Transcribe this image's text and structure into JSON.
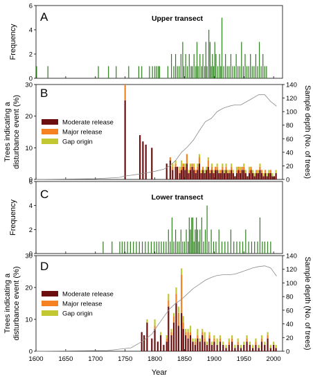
{
  "figure": {
    "xlabel": "Year",
    "xticks": [
      1600,
      1650,
      1700,
      1750,
      1800,
      1850,
      1900,
      1950,
      2000
    ],
    "xlim": [
      1600,
      2015
    ]
  },
  "chart_data": [
    {
      "panel": "A",
      "type": "bar",
      "title": "Upper transect",
      "ylabel": "Frequency",
      "ylim": [
        0,
        6
      ],
      "yticks": [
        0,
        2,
        4,
        6
      ],
      "color": "#2e7d1e",
      "x": [
        1601,
        1620,
        1705,
        1722,
        1735,
        1756,
        1773,
        1778,
        1791,
        1796,
        1800,
        1803,
        1806,
        1808,
        1822,
        1828,
        1832,
        1835,
        1838,
        1841,
        1844,
        1847,
        1849,
        1852,
        1855,
        1858,
        1861,
        1863,
        1866,
        1869,
        1871,
        1873,
        1876,
        1879,
        1881,
        1884,
        1886,
        1888,
        1891,
        1893,
        1895,
        1897,
        1899,
        1901,
        1903,
        1906,
        1909,
        1911,
        1913,
        1916,
        1919,
        1922,
        1925,
        1928,
        1931,
        1934,
        1937,
        1940,
        1943,
        1946,
        1949,
        1952,
        1955,
        1958,
        1961,
        1964,
        1967,
        1970,
        1973,
        1976,
        1979,
        1982,
        1985,
        1988
      ],
      "values": [
        1,
        1,
        1,
        1,
        1,
        1,
        1,
        1,
        1,
        1,
        1,
        1,
        1,
        1,
        1,
        2,
        1,
        2,
        1,
        1,
        2,
        3,
        1,
        2,
        1,
        2,
        1,
        1,
        2,
        1,
        3,
        1,
        2,
        1,
        2,
        1,
        3,
        1,
        4,
        3,
        1,
        2,
        1,
        3,
        2,
        1,
        2,
        1,
        5,
        1,
        2,
        1,
        1,
        2,
        1,
        1,
        2,
        1,
        1,
        3,
        1,
        2,
        1,
        1,
        2,
        1,
        1,
        2,
        1,
        3,
        1,
        2,
        1,
        1
      ]
    },
    {
      "panel": "B",
      "type": "bar",
      "ylabel": "Trees indicating a disturbance event (%)",
      "y2label": "Sample depth (No. of trees)",
      "ylim": [
        0,
        30
      ],
      "yticks": [
        0,
        10,
        20,
        30
      ],
      "y2lim": [
        0,
        140
      ],
      "y2ticks": [
        0,
        20,
        40,
        60,
        80,
        100,
        120,
        140
      ],
      "legend": {
        "placement": "left",
        "entries": [
          "Moderate release",
          "Major release",
          "Gap origin"
        ]
      },
      "colors": {
        "Moderate release": "#6b0f0f",
        "Major release": "#f58220",
        "Gap origin": "#c2c832"
      },
      "x": [
        1750,
        1775,
        1780,
        1785,
        1795,
        1820,
        1826,
        1830,
        1835,
        1838,
        1842,
        1845,
        1848,
        1851,
        1854,
        1857,
        1860,
        1863,
        1866,
        1869,
        1872,
        1875,
        1878,
        1881,
        1884,
        1887,
        1890,
        1893,
        1896,
        1899,
        1902,
        1905,
        1908,
        1911,
        1914,
        1917,
        1920,
        1923,
        1926,
        1929,
        1932,
        1935,
        1938,
        1941,
        1944,
        1947,
        1950,
        1953,
        1956,
        1959,
        1962,
        1965,
        1968,
        1971,
        1974,
        1977,
        1980,
        1983,
        1986,
        1989,
        1992,
        1995,
        1998,
        2001,
        2004
      ],
      "series": [
        {
          "name": "Moderate release",
          "values": [
            25,
            14,
            12,
            11,
            10,
            5,
            6,
            3,
            4,
            4,
            2,
            3,
            4,
            3,
            5,
            2,
            3,
            4,
            3,
            2,
            3,
            5,
            2,
            3,
            2,
            3,
            4,
            2,
            3,
            2,
            3,
            3,
            2,
            2,
            3,
            2,
            3,
            2,
            2,
            3,
            2,
            1,
            2,
            3,
            2,
            3,
            3,
            2,
            1,
            2,
            3,
            2,
            1,
            2,
            2,
            3,
            2,
            1,
            2,
            1,
            2,
            2,
            1,
            1,
            2
          ]
        },
        {
          "name": "Major release",
          "values": [
            5,
            0,
            0,
            0,
            0,
            0,
            1,
            1,
            1,
            0,
            1,
            1,
            1,
            1,
            3,
            0,
            1,
            1,
            1,
            1,
            1,
            2,
            0,
            1,
            0,
            0,
            2,
            1,
            1,
            0,
            1,
            1,
            0,
            1,
            1,
            0,
            1,
            0,
            1,
            1,
            0,
            0,
            1,
            1,
            1,
            1,
            1,
            0,
            0,
            1,
            1,
            0,
            0,
            1,
            0,
            1,
            1,
            0,
            1,
            0,
            0,
            1,
            0,
            0,
            0
          ]
        },
        {
          "name": "Gap origin",
          "values": [
            0,
            0,
            0,
            0,
            0,
            0,
            0,
            1,
            1,
            0,
            1,
            2,
            0,
            1,
            0,
            1,
            1,
            0,
            1,
            0,
            1,
            1,
            1,
            0,
            1,
            1,
            1,
            0,
            1,
            1,
            0,
            1,
            1,
            0,
            1,
            1,
            1,
            1,
            0,
            1,
            1,
            0,
            1,
            0,
            1,
            0,
            1,
            1,
            0,
            1,
            0,
            1,
            1,
            0,
            1,
            1,
            0,
            1,
            0,
            1,
            1,
            0,
            1,
            0,
            1
          ]
        }
      ],
      "sample_depth": {
        "x": [
          1600,
          1700,
          1740,
          1750,
          1775,
          1800,
          1815,
          1825,
          1835,
          1845,
          1855,
          1865,
          1875,
          1885,
          1895,
          1905,
          1915,
          1925,
          1935,
          1945,
          1955,
          1965,
          1975,
          1985,
          1995,
          2005
        ],
        "y": [
          0,
          1,
          3,
          5,
          8,
          12,
          15,
          20,
          28,
          40,
          48,
          58,
          72,
          85,
          90,
          100,
          105,
          108,
          110,
          110,
          115,
          120,
          125,
          125,
          115,
          108
        ]
      }
    },
    {
      "panel": "C",
      "type": "bar",
      "title": "Lower transect",
      "ylabel": "Frequency",
      "ylim": [
        0,
        6
      ],
      "yticks": [
        0,
        2,
        4,
        6
      ],
      "color": "#2e7d1e",
      "x": [
        1713,
        1728,
        1741,
        1745,
        1749,
        1754,
        1759,
        1764,
        1769,
        1774,
        1779,
        1784,
        1789,
        1794,
        1799,
        1803,
        1807,
        1811,
        1815,
        1819,
        1823,
        1826,
        1829,
        1832,
        1835,
        1838,
        1841,
        1844,
        1847,
        1850,
        1853,
        1856,
        1858,
        1860,
        1862,
        1864,
        1866,
        1868,
        1870,
        1872,
        1874,
        1876,
        1879,
        1882,
        1885,
        1888,
        1891,
        1895,
        1899,
        1903,
        1908,
        1913,
        1918,
        1923,
        1928,
        1933,
        1938,
        1943,
        1948,
        1953,
        1958,
        1963,
        1968,
        1973,
        1977,
        1981,
        1985,
        1990,
        1995
      ],
      "values": [
        1,
        1,
        1,
        1,
        1,
        1,
        1,
        1,
        1,
        1,
        1,
        1,
        1,
        1,
        1,
        1,
        1,
        1,
        1,
        1,
        2,
        1,
        3,
        1,
        2,
        1,
        1,
        2,
        1,
        1,
        2,
        1,
        3,
        2,
        3,
        3,
        1,
        2,
        3,
        2,
        1,
        2,
        3,
        1,
        2,
        4,
        1,
        2,
        1,
        1,
        2,
        1,
        1,
        1,
        2,
        1,
        1,
        1,
        1,
        2,
        1,
        1,
        1,
        1,
        3,
        1,
        1,
        1,
        1
      ]
    },
    {
      "panel": "D",
      "type": "bar",
      "ylabel": "Trees indicating a disturbance event (%)",
      "y2label": "Sample depth (No. of trees)",
      "ylim": [
        0,
        30
      ],
      "yticks": [
        0,
        10,
        20,
        30
      ],
      "y2lim": [
        0,
        140
      ],
      "y2ticks": [
        0,
        20,
        40,
        60,
        80,
        100,
        120,
        140
      ],
      "legend": {
        "placement": "left",
        "entries": [
          "Moderate release",
          "Major release",
          "Gap origin"
        ]
      },
      "colors": {
        "Moderate release": "#6b0f0f",
        "Major release": "#f58220",
        "Gap origin": "#c2c832"
      },
      "x": [
        1778,
        1782,
        1787,
        1795,
        1800,
        1805,
        1810,
        1815,
        1820,
        1823,
        1828,
        1832,
        1836,
        1840,
        1845,
        1848,
        1852,
        1856,
        1860,
        1864,
        1868,
        1872,
        1876,
        1880,
        1884,
        1888,
        1892,
        1896,
        1900,
        1905,
        1910,
        1915,
        1920,
        1925,
        1930,
        1935,
        1940,
        1945,
        1950,
        1955,
        1960,
        1965,
        1970,
        1975,
        1980,
        1985,
        1990,
        1995,
        2000,
        2004
      ],
      "series": [
        {
          "name": "Moderate release",
          "values": [
            6,
            5,
            9,
            4,
            7,
            3,
            5,
            2,
            3,
            14,
            5,
            9,
            15,
            8,
            12,
            7,
            5,
            4,
            5,
            3,
            2,
            4,
            3,
            5,
            3,
            2,
            4,
            2,
            3,
            2,
            3,
            2,
            1,
            2,
            3,
            1,
            2,
            1,
            2,
            3,
            2,
            1,
            2,
            1,
            3,
            2,
            4,
            1,
            2,
            1
          ]
        },
        {
          "name": "Major release",
          "values": [
            0,
            0,
            0,
            0,
            1,
            0,
            0,
            0,
            1,
            2,
            1,
            2,
            3,
            4,
            12,
            2,
            1,
            2,
            1,
            0,
            1,
            1,
            0,
            1,
            1,
            0,
            1,
            0,
            1,
            0,
            1,
            0,
            0,
            1,
            1,
            0,
            1,
            0,
            0,
            1,
            0,
            0,
            1,
            0,
            1,
            0,
            1,
            0,
            0,
            0
          ]
        },
        {
          "name": "Gap origin",
          "values": [
            0,
            0,
            1,
            0,
            2,
            0,
            1,
            0,
            1,
            2,
            1,
            1,
            2,
            2,
            2,
            2,
            1,
            1,
            2,
            1,
            1,
            2,
            1,
            1,
            2,
            1,
            1,
            1,
            1,
            2,
            1,
            1,
            1,
            1,
            1,
            1,
            1,
            1,
            1,
            1,
            1,
            1,
            1,
            1,
            1,
            1,
            1,
            1,
            1,
            1
          ]
        }
      ],
      "sample_depth": {
        "x": [
          1600,
          1720,
          1760,
          1780,
          1795,
          1805,
          1815,
          1825,
          1835,
          1845,
          1855,
          1865,
          1875,
          1885,
          1895,
          1905,
          1915,
          1925,
          1935,
          1945,
          1955,
          1965,
          1975,
          1985,
          1995,
          2005
        ],
        "y": [
          0,
          1,
          5,
          15,
          25,
          38,
          50,
          62,
          70,
          76,
          84,
          92,
          98,
          104,
          108,
          111,
          112,
          112,
          113,
          116,
          119,
          122,
          124,
          125,
          122,
          110
        ]
      }
    }
  ]
}
